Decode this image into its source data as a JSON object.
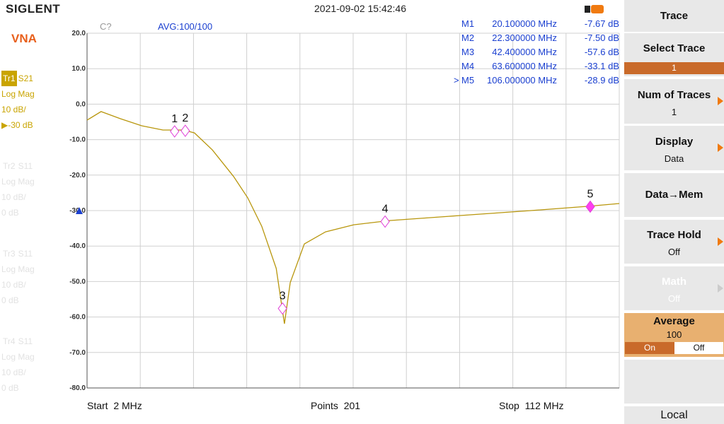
{
  "header": {
    "brand": "SIGLENT",
    "datetime": "2021-09-02 15:42:46"
  },
  "sidebar": {
    "mode": "VNA",
    "traces": [
      {
        "id": "Tr1",
        "param": "S21",
        "format": "Log Mag",
        "scale": "10 dB/",
        "ref": "▶-30 dB"
      },
      {
        "id": "Tr2",
        "param": "S11",
        "format": "Log Mag",
        "scale": "10 dB/",
        "ref": "0 dB"
      },
      {
        "id": "Tr3",
        "param": "S11",
        "format": "Log Mag",
        "scale": "10 dB/",
        "ref": "0 dB"
      },
      {
        "id": "Tr4",
        "param": "S11",
        "format": "Log Mag",
        "scale": "10 dB/",
        "ref": "0 dB"
      }
    ]
  },
  "status": {
    "cal": "C?",
    "avg": "AVG:100/100"
  },
  "chart_data": {
    "type": "line",
    "x": [
      2,
      4.9,
      8.9,
      13.3,
      17.7,
      22,
      24.2,
      27.9,
      32.3,
      35.2,
      38.1,
      41.1,
      42.8,
      44,
      46.9,
      51.3,
      57.1,
      64.5,
      79.1,
      93.7,
      105.4,
      112
    ],
    "series": [
      {
        "color": "#b8960c",
        "values": [
          -4.5,
          -2.1,
          -4.1,
          -6.1,
          -7.3,
          -7.3,
          -8.1,
          -12.9,
          -20.4,
          -26.4,
          -34.4,
          -46.3,
          -61.9,
          -50.3,
          -39.4,
          -36,
          -34,
          -32.8,
          -31.4,
          -30,
          -28.8,
          -28
        ]
      }
    ],
    "xlim": [
      2,
      112
    ],
    "xticks": [
      2,
      13,
      24,
      35,
      46,
      57,
      68,
      79,
      90,
      101,
      112
    ],
    "ylim": [
      -80,
      20
    ],
    "yticks": [
      {
        "value": 20,
        "label": "20.0"
      },
      {
        "value": 10,
        "label": "10.0"
      },
      {
        "value": 0,
        "label": "0.0"
      },
      {
        "value": -10,
        "label": "-10.0"
      },
      {
        "value": -20,
        "label": "-20.0"
      },
      {
        "value": -30,
        "label": "-30.0"
      },
      {
        "value": -40,
        "label": "-40.0"
      },
      {
        "value": -50,
        "label": "-50.0"
      },
      {
        "value": -60,
        "label": "-60.0"
      },
      {
        "value": -70,
        "label": "-70.0"
      },
      {
        "value": -80,
        "label": "-80.0"
      }
    ],
    "grid": true,
    "ref_level": -30,
    "markers": [
      {
        "label": "1",
        "name": "M1",
        "x": 20.1,
        "x_label": "20.100000 MHz",
        "value": -7.67,
        "value_label": "-7.67 dB"
      },
      {
        "label": "2",
        "name": "M2",
        "x": 22.3,
        "x_label": "22.300000 MHz",
        "value": -7.5,
        "value_label": "-7.50 dB"
      },
      {
        "label": "3",
        "name": "M3",
        "x": 42.4,
        "x_label": "42.400000 MHz",
        "value": -57.6,
        "value_label": "-57.6 dB"
      },
      {
        "label": "4",
        "name": "M4",
        "x": 63.6,
        "x_label": "63.600000 MHz",
        "value": -33.1,
        "value_label": "-33.1 dB"
      },
      {
        "label": "5",
        "name": "M5",
        "x": 106,
        "x_label": "106.000000 MHz",
        "value": -28.9,
        "value_label": "-28.9 dB",
        "pointer": ">"
      }
    ]
  },
  "footer": {
    "start": "Start  2 MHz",
    "points": "Points  201",
    "stop": "Stop  112 MHz"
  },
  "menu": {
    "title": "Trace",
    "select_trace": "Select Trace",
    "select_value": "1",
    "num_traces": "Num of Traces",
    "num_traces_value": "1",
    "display": "Display",
    "display_value": "Data",
    "data_mem": "Data→Mem",
    "trace_hold": "Trace Hold",
    "trace_hold_value": "Off",
    "math": "Math",
    "math_value": "Off",
    "average": "Average",
    "average_value": "100",
    "on": "On",
    "off": "Off",
    "local": "Local"
  }
}
